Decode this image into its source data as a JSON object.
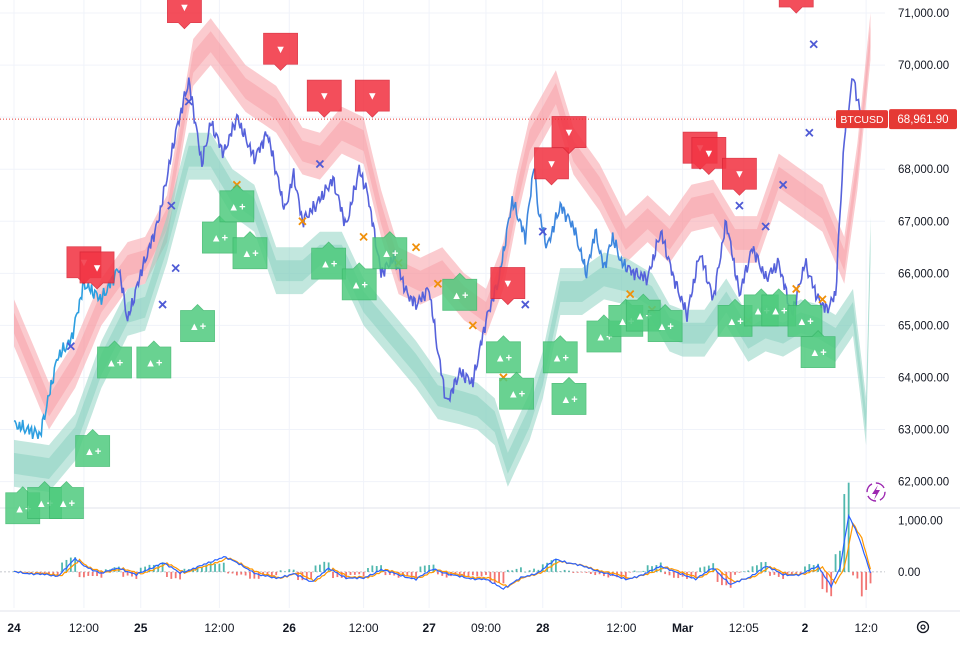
{
  "app": {
    "symbol_label": "BTCUSD"
  },
  "chart_data": {
    "type": "line",
    "title": "BTCUSD",
    "price_axis": {
      "ticks": [
        71000,
        70000,
        69000,
        68000,
        67000,
        66000,
        65000,
        64000,
        63000,
        62000
      ],
      "tick_labels": [
        "71,000.00",
        "70,000.00",
        "69,000.00",
        "68,000.00",
        "67,000.00",
        "66,000.00",
        "65,000.00",
        "64,000.00",
        "63,000.00",
        "62,000.00"
      ],
      "range": [
        61550,
        71250
      ]
    },
    "last_price": {
      "value": 68961.9,
      "label": "68,961.90",
      "symbol": "BTCUSD"
    },
    "time_axis": {
      "labels": [
        "24",
        "12:00",
        "25",
        "12:00",
        "26",
        "12:00",
        "27",
        "09:00",
        "28",
        "12:00",
        "Mar",
        "12:05",
        "2",
        "12:0"
      ],
      "bold": [
        "24",
        "25",
        "26",
        "27",
        "28",
        "Mar",
        "2"
      ],
      "label_index": [
        0,
        16,
        29,
        47,
        63,
        80,
        95,
        108,
        121,
        139,
        153,
        167,
        181,
        195
      ]
    },
    "price_series_anchors": {
      "name": "BTCUSD",
      "index": [
        0,
        6,
        10,
        13,
        16,
        20,
        24,
        26,
        29,
        33,
        37,
        40,
        43,
        45,
        48,
        51,
        55,
        58,
        62,
        64,
        66,
        69,
        73,
        76,
        79,
        81,
        84,
        87,
        90,
        92,
        95,
        97,
        99,
        102,
        105,
        108,
        111,
        114,
        117,
        119,
        120,
        122,
        125,
        128,
        131,
        133,
        135,
        137,
        139,
        142,
        145,
        148,
        151,
        154,
        157,
        160,
        163,
        166,
        169,
        172,
        175,
        178,
        181,
        184,
        186,
        188,
        190,
        192,
        194,
        196
      ],
      "values": [
        63100,
        62900,
        64400,
        64700,
        65800,
        65500,
        66100,
        65100,
        66000,
        67000,
        68700,
        69700,
        68100,
        68900,
        68300,
        69000,
        68200,
        68700,
        67200,
        67900,
        67000,
        67300,
        67800,
        66900,
        68000,
        67500,
        66000,
        66300,
        65600,
        65400,
        65700,
        64500,
        63500,
        64100,
        63900,
        65100,
        65900,
        67400,
        66700,
        68100,
        67200,
        66500,
        67300,
        66900,
        66000,
        66800,
        66100,
        66700,
        66200,
        66000,
        65900,
        66800,
        65900,
        65200,
        66400,
        65500,
        67000,
        65600,
        66500,
        65900,
        66200,
        65200,
        66200,
        65500,
        65300,
        65600,
        68600,
        69800,
        68900,
        68961.9
      ]
    },
    "band_upper_anchors": {
      "index": [
        0,
        8,
        14,
        20,
        26,
        30,
        35,
        41,
        45,
        53,
        60,
        66,
        70,
        75,
        80,
        84,
        88,
        93,
        98,
        103,
        108,
        112,
        115,
        118,
        124,
        128,
        134,
        140,
        145,
        150,
        155,
        160,
        165,
        170,
        175,
        180,
        185,
        190,
        193,
        196
      ],
      "values": [
        65500,
        63900,
        64700,
        65900,
        66600,
        66700,
        67500,
        70500,
        70900,
        70000,
        69600,
        68800,
        68700,
        69200,
        69000,
        67600,
        66500,
        66300,
        66500,
        66000,
        65700,
        66600,
        67900,
        69000,
        69900,
        68800,
        68100,
        67100,
        67500,
        67100,
        67700,
        67800,
        67100,
        67100,
        68300,
        68000,
        67700,
        66700,
        68500,
        71000
      ]
    },
    "band_lower_anchors": {
      "index": [
        0,
        8,
        14,
        20,
        26,
        30,
        35,
        40,
        45,
        50,
        55,
        60,
        66,
        70,
        75,
        80,
        86,
        92,
        97,
        102,
        106,
        110,
        113,
        118,
        121,
        125,
        130,
        135,
        140,
        146,
        150,
        153,
        158,
        163,
        168,
        172,
        176,
        180,
        184,
        188,
        192,
        195,
        196
      ],
      "values": [
        61900,
        61800,
        62400,
        63800,
        64800,
        64900,
        66200,
        67800,
        67800,
        67100,
        66800,
        65600,
        65600,
        65900,
        65900,
        65000,
        64400,
        63800,
        63200,
        63100,
        63000,
        62700,
        61900,
        62800,
        63600,
        65200,
        65200,
        65500,
        65400,
        65100,
        64500,
        64400,
        64400,
        65000,
        64300,
        64500,
        64400,
        64600,
        64500,
        64300,
        64800,
        62700,
        66200
      ]
    },
    "buy_signals": {
      "label": "▲+",
      "index": [
        2,
        7,
        12,
        18,
        23,
        32,
        42,
        47,
        51,
        54,
        72,
        79,
        86,
        102,
        112,
        115,
        125,
        127,
        135,
        140,
        144,
        149,
        165,
        171,
        175,
        181,
        184
      ],
      "values": [
        61900,
        62000,
        62000,
        63000,
        64700,
        64700,
        65400,
        67100,
        67700,
        66800,
        66600,
        66200,
        66800,
        66000,
        64800,
        64100,
        64800,
        64000,
        65200,
        65500,
        65600,
        65400,
        65500,
        65700,
        65700,
        65500,
        64900
      ]
    },
    "sell_signals": {
      "label": "▼",
      "index": [
        16,
        19,
        39,
        61,
        71,
        82,
        113,
        123,
        127,
        157,
        159,
        166,
        179
      ],
      "values": [
        65800,
        65700,
        70700,
        69900,
        69000,
        69000,
        65400,
        67700,
        68300,
        68000,
        67900,
        67500,
        71000
      ]
    },
    "x_markers": {
      "blue_index": [
        13,
        37,
        34,
        36,
        40,
        70,
        117,
        121,
        166,
        172,
        176,
        182,
        183
      ],
      "blue_values": [
        64600,
        66100,
        65400,
        67300,
        69300,
        68100,
        65400,
        66800,
        67300,
        66900,
        67700,
        68700,
        70400
      ],
      "orange_index": [
        51,
        66,
        80,
        88,
        92,
        97,
        105,
        112,
        141,
        146,
        168,
        179,
        185
      ],
      "orange_values": [
        67700,
        67000,
        66700,
        66200,
        66500,
        65800,
        65000,
        64000,
        65600,
        65300,
        65100,
        65700,
        65500
      ]
    },
    "macd": {
      "tick_labels": [
        "1,000.00",
        "0.00"
      ],
      "ticks": [
        1000,
        0
      ],
      "range": [
        -700,
        1200
      ],
      "macd_anchors": {
        "index": [
          0,
          10,
          14,
          16,
          20,
          24,
          28,
          34,
          38,
          43,
          48,
          52,
          56,
          60,
          64,
          68,
          72,
          76,
          80,
          84,
          88,
          92,
          96,
          100,
          104,
          108,
          112,
          116,
          120,
          124,
          128,
          132,
          136,
          140,
          144,
          148,
          152,
          156,
          160,
          164,
          168,
          172,
          176,
          180,
          184,
          187,
          189,
          191,
          193,
          196
        ],
        "values": [
          0,
          -80,
          250,
          120,
          -30,
          80,
          -60,
          180,
          -20,
          120,
          300,
          130,
          -60,
          -120,
          -40,
          -190,
          60,
          -110,
          -130,
          50,
          -60,
          -140,
          60,
          -60,
          -120,
          -150,
          -320,
          -120,
          -10,
          240,
          160,
          60,
          -40,
          -140,
          -60,
          120,
          -30,
          -130,
          70,
          -240,
          -120,
          110,
          -50,
          -60,
          120,
          -280,
          60,
          1100,
          750,
          -20
        ]
      },
      "signal_anchors": {
        "index": [
          0,
          11,
          15,
          17,
          21,
          25,
          29,
          35,
          39,
          44,
          49,
          53,
          57,
          61,
          65,
          69,
          73,
          77,
          81,
          85,
          89,
          93,
          97,
          101,
          105,
          109,
          113,
          117,
          121,
          125,
          129,
          133,
          137,
          141,
          145,
          149,
          153,
          157,
          161,
          165,
          169,
          173,
          177,
          181,
          185,
          188,
          190,
          192,
          194,
          196
        ],
        "values": [
          0,
          -60,
          220,
          100,
          -20,
          70,
          -50,
          160,
          -10,
          110,
          270,
          110,
          -50,
          -110,
          -30,
          -170,
          50,
          -100,
          -110,
          40,
          -50,
          -120,
          50,
          -50,
          -100,
          -130,
          -280,
          -100,
          0,
          210,
          140,
          50,
          -30,
          -120,
          -50,
          100,
          -20,
          -110,
          60,
          -200,
          -100,
          90,
          -40,
          -50,
          100,
          -230,
          80,
          950,
          650,
          50
        ]
      }
    }
  }
}
